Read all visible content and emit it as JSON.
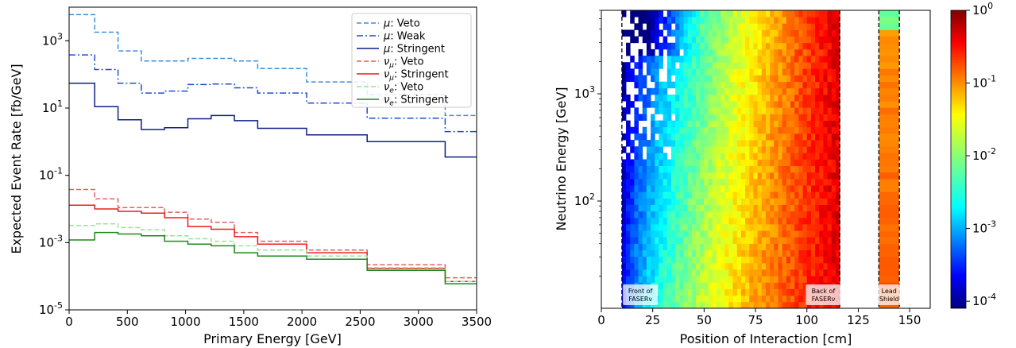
{
  "chart_data": [
    {
      "type": "line",
      "subtype": "step",
      "xlabel": "Primary Energy [GeV]",
      "ylabel": "Expected Event Rate [fb/GeV]",
      "xlim": [
        0,
        3500
      ],
      "ylim": [
        1e-05,
        10000.0
      ],
      "yscale": "log",
      "xticks": [
        "0",
        "500",
        "1000",
        "1500",
        "2000",
        "2500",
        "3000",
        "3500"
      ],
      "yticks": [
        {
          "base": "10",
          "exp": "-5",
          "value": 1e-05
        },
        {
          "base": "10",
          "exp": "-3",
          "value": 0.001
        },
        {
          "base": "10",
          "exp": "-1",
          "value": 0.1
        },
        {
          "base": "10",
          "exp": "1",
          "value": 10
        },
        {
          "base": "10",
          "exp": "3",
          "value": 1000
        }
      ],
      "legend": "top-right",
      "x_edges": [
        0,
        220,
        420,
        620,
        820,
        1020,
        1220,
        1420,
        1620,
        2040,
        2560,
        3230,
        3500
      ],
      "series": [
        {
          "name": "μ: Veto",
          "label_particle": "μ",
          "label_sub": "",
          "label_rest": ": Veto",
          "color": "#3a8fe0",
          "dash": "dashed",
          "values": [
            6000,
            1800,
            500,
            250,
            250,
            300,
            300,
            250,
            150,
            60,
            25,
            6
          ]
        },
        {
          "name": "μ: Weak",
          "label_particle": "μ",
          "label_sub": "",
          "label_rest": ": Weak",
          "color": "#1f4fd1",
          "dash": "dashdot",
          "values": [
            380,
            140,
            55,
            28,
            32,
            50,
            52,
            40,
            28,
            14,
            5,
            2
          ]
        },
        {
          "name": "μ: Stringent",
          "label_particle": "μ",
          "label_sub": "",
          "label_rest": ": Stringent",
          "color": "#0d1f8a",
          "dash": "solid",
          "values": [
            55,
            11,
            4.5,
            2.3,
            2.6,
            4.8,
            6.0,
            4.2,
            2.5,
            1.6,
            1.0,
            0.35
          ]
        },
        {
          "name": "νμ: Veto",
          "label_particle": "ν",
          "label_sub": "μ",
          "label_rest": ": Veto",
          "color": "#e06060",
          "dash": "dashed",
          "values": [
            0.038,
            0.02,
            0.011,
            0.011,
            0.008,
            0.005,
            0.004,
            0.002,
            0.0011,
            0.0006,
            0.00022,
            9e-05
          ]
        },
        {
          "name": "νμ: Stringent",
          "label_particle": "ν",
          "label_sub": "μ",
          "label_rest": ": Stringent",
          "color": "#ee1c1c",
          "dash": "solid",
          "values": [
            0.013,
            0.01,
            0.0085,
            0.0075,
            0.0055,
            0.003,
            0.0025,
            0.0015,
            0.0009,
            0.0005,
            0.00017,
            7e-05
          ]
        },
        {
          "name": "νe: Veto",
          "label_particle": "ν",
          "label_sub": "e",
          "label_rest": ": Veto",
          "color": "#98e398",
          "dash": "dashed",
          "values": [
            0.0032,
            0.0036,
            0.0028,
            0.0024,
            0.0016,
            0.0013,
            0.0011,
            0.0008,
            0.0006,
            0.0004,
            0.00018,
            7e-05
          ]
        },
        {
          "name": "νe: Stringent",
          "label_particle": "ν",
          "label_sub": "e",
          "label_rest": ": Stringent",
          "color": "#1a8a1a",
          "dash": "solid",
          "values": [
            0.0012,
            0.002,
            0.0018,
            0.0016,
            0.0011,
            0.0009,
            0.0008,
            0.0005,
            0.0004,
            0.00032,
            0.00015,
            6e-05
          ]
        }
      ]
    },
    {
      "type": "heatmap",
      "xlabel": "Position of Interaction [cm]",
      "ylabel": "Neutrino Energy [GeV]",
      "xlim": [
        0,
        160
      ],
      "ylim": [
        10,
        6000
      ],
      "yscale": "log",
      "xticks": [
        "0",
        "25",
        "50",
        "75",
        "100",
        "125",
        "150"
      ],
      "yticks": [
        {
          "base": "10",
          "exp": "2",
          "value": 100
        },
        {
          "base": "10",
          "exp": "3",
          "value": 1000
        }
      ],
      "colorscale": "jet",
      "color_range": [
        8e-05,
        1
      ],
      "colorbar_ticks": [
        {
          "base": "10",
          "exp": "0",
          "value": 1
        },
        {
          "base": "10",
          "exp": "-1",
          "value": 0.1
        },
        {
          "base": "10",
          "exp": "-2",
          "value": 0.01
        },
        {
          "base": "10",
          "exp": "-3",
          "value": 0.001
        },
        {
          "base": "10",
          "exp": "-4",
          "value": 0.0001
        }
      ],
      "boundary_lines_x": [
        10,
        116,
        135,
        145
      ],
      "region_labels": [
        {
          "line1": "Front of",
          "line2": "FASERν",
          "x_center": 19
        },
        {
          "line1": "Back of",
          "line2": "FASERν",
          "x_center": 108
        },
        {
          "line1": "Lead",
          "line2": "Shield",
          "x_center": 140
        }
      ],
      "fasernu_x_range": [
        10,
        116
      ],
      "shield_x_range": [
        135,
        145
      ]
    }
  ]
}
